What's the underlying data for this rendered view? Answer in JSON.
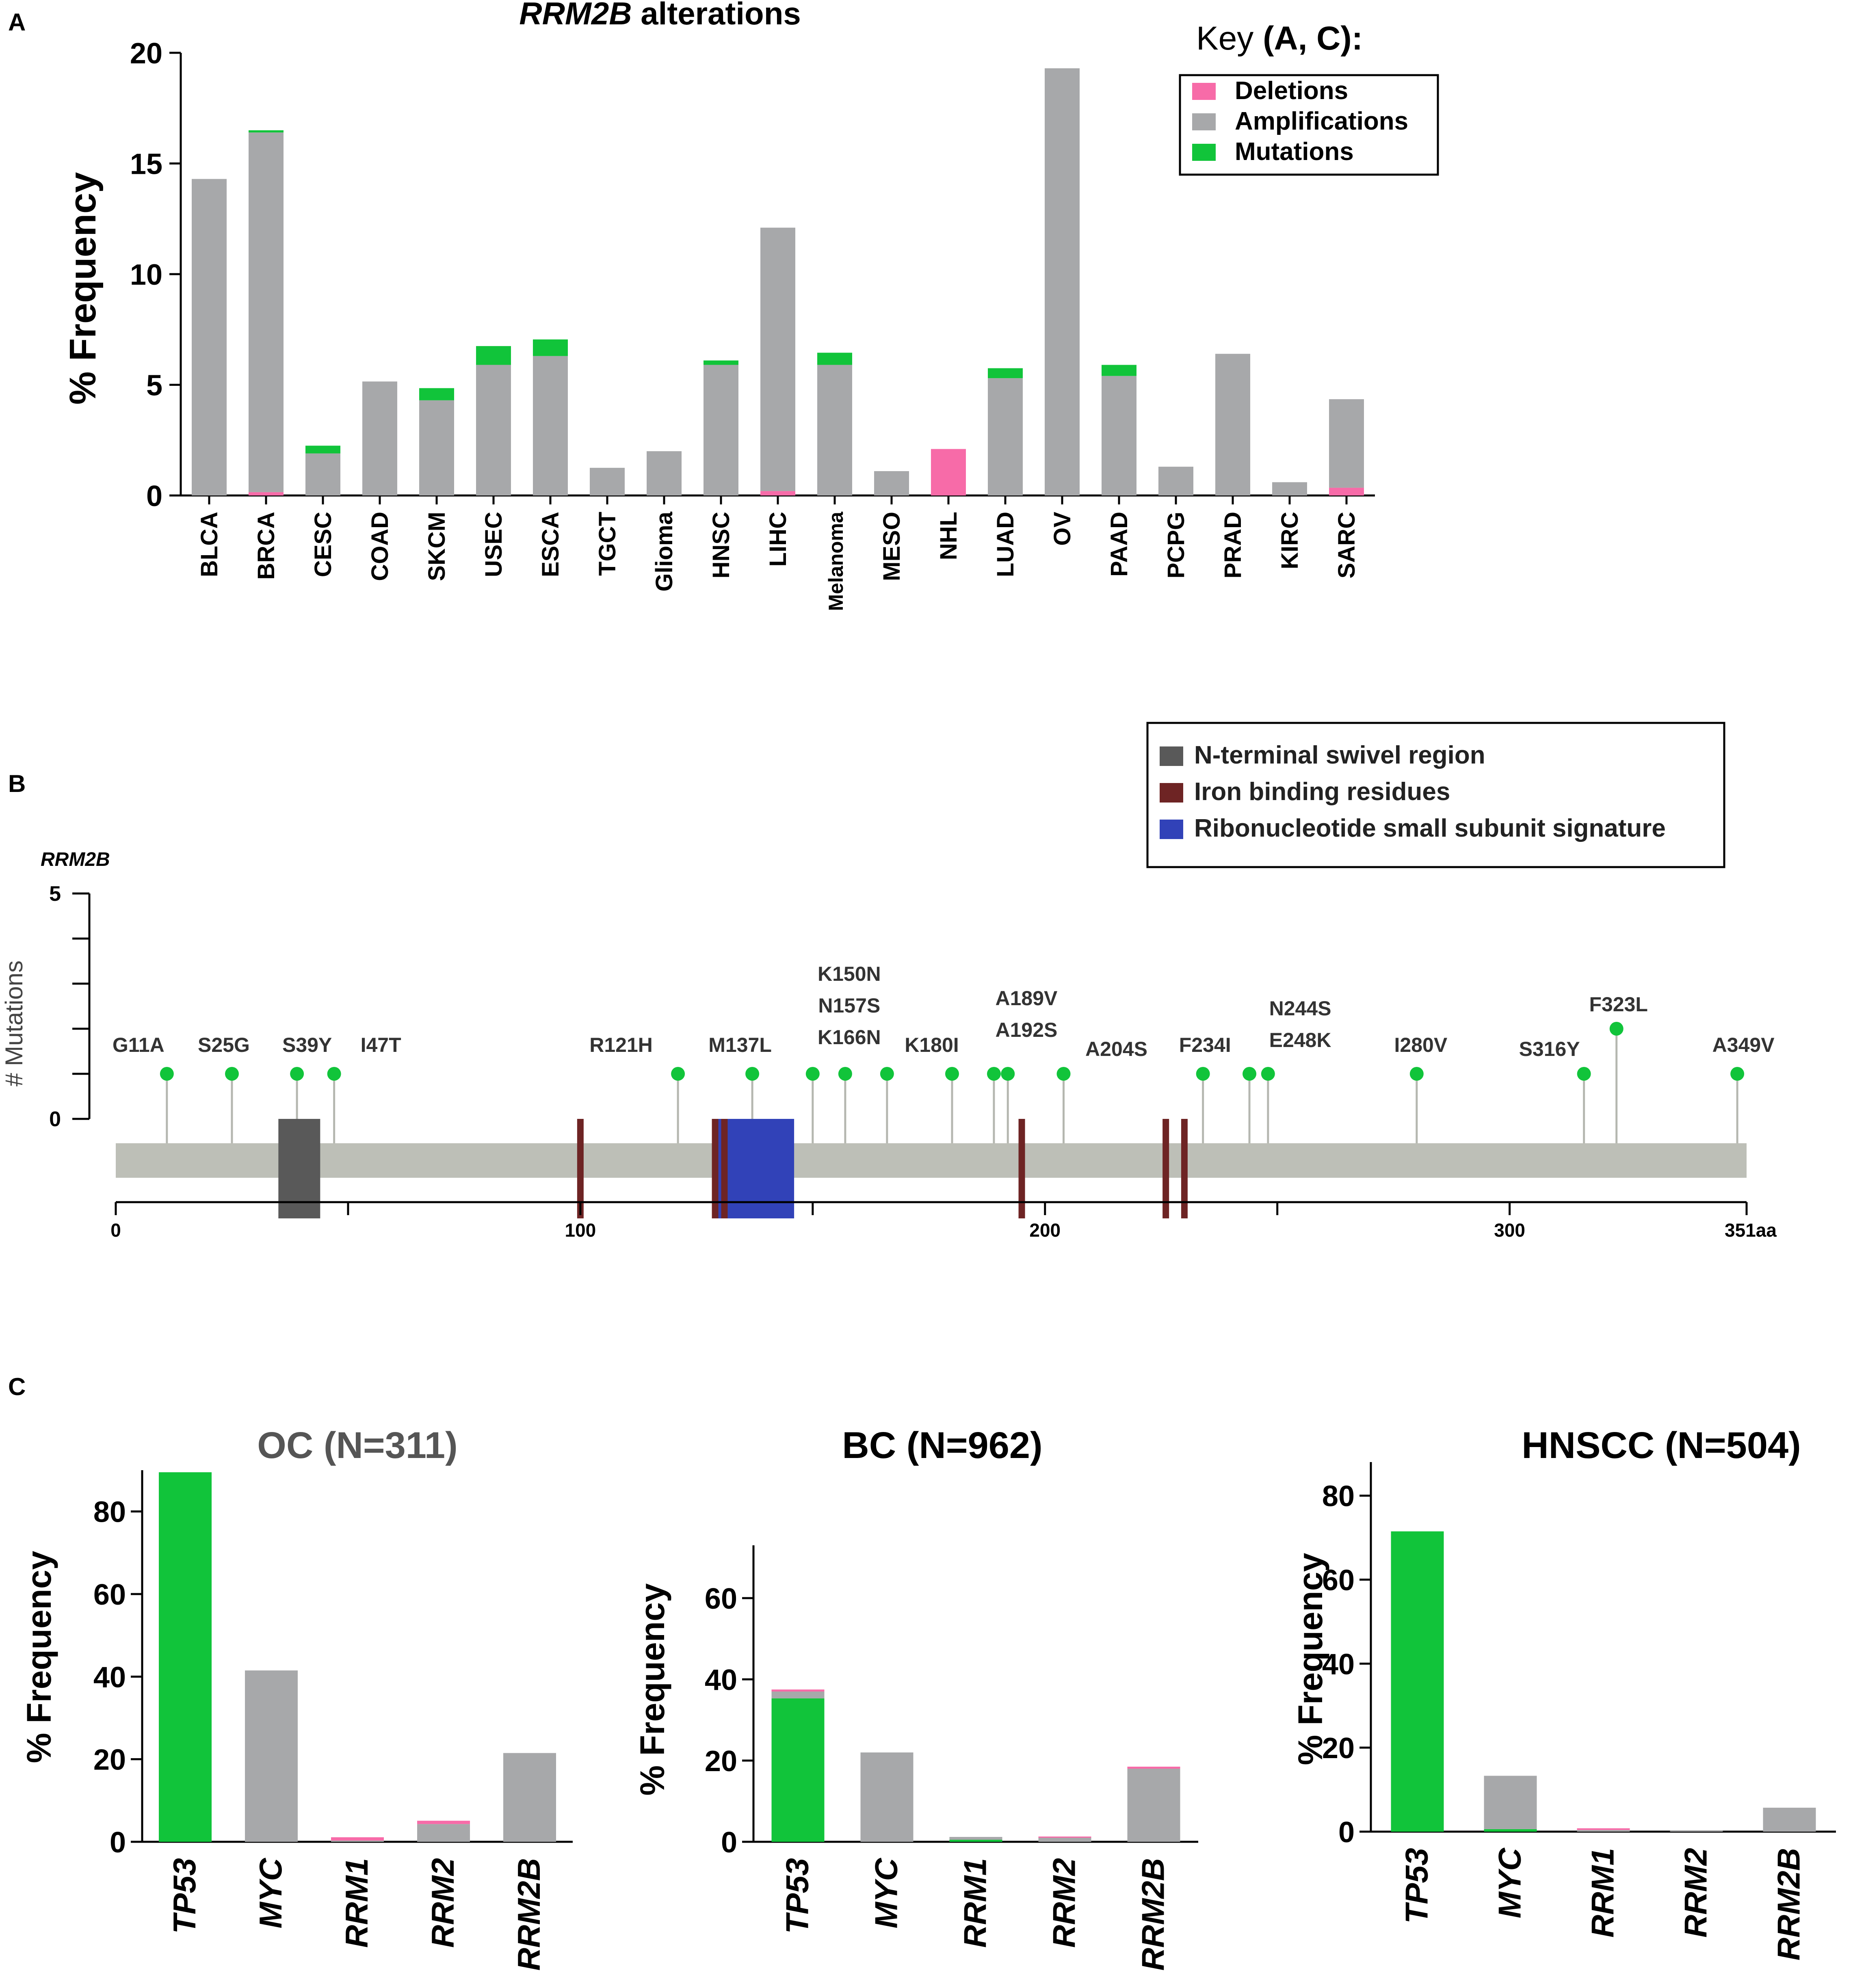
{
  "panels": {
    "a": {
      "letter": "A",
      "chart_data": {
        "type": "bar",
        "stacked": true,
        "title_italic": "RRM2B",
        "title_rest": " alterations",
        "ylabel": "% Frequency",
        "ylim": [
          0,
          20
        ],
        "yticks": [
          0,
          5,
          10,
          15,
          20
        ],
        "categories": [
          "BLCA",
          "BRCA",
          "CESC",
          "COAD",
          "SKCM",
          "USEC",
          "ESCA",
          "TGCT",
          "Glioma",
          "HNSC",
          "LIHC",
          "Melanoma",
          "MESO",
          "NHL",
          "LUAD",
          "OV",
          "PAAD",
          "PCPG",
          "PRAD",
          "KIRC",
          "SARC"
        ],
        "series": [
          {
            "name": "Deletions",
            "color": "#f76ba8",
            "values": [
              0,
              0.15,
              0,
              0,
              0,
              0,
              0,
              0,
              0,
              0,
              0.2,
              0,
              0,
              2.1,
              0,
              0,
              0,
              0,
              0,
              0,
              0.35
            ]
          },
          {
            "name": "Amplifications",
            "color": "#a7a8aa",
            "values": [
              14.3,
              16.25,
              1.9,
              5.15,
              4.3,
              5.9,
              6.3,
              1.25,
              2.0,
              5.9,
              11.9,
              5.9,
              1.1,
              0,
              5.3,
              19.3,
              5.4,
              1.3,
              6.4,
              0.6,
              4.0
            ]
          },
          {
            "name": "Mutations",
            "color": "#11c43a",
            "values": [
              0,
              0.1,
              0.35,
              0,
              0.55,
              0.85,
              0.75,
              0,
              0,
              0.2,
              0,
              0.55,
              0,
              0,
              0.45,
              0,
              0.5,
              0,
              0,
              0,
              0
            ]
          }
        ]
      },
      "key": {
        "title_plain": "Key ",
        "title_bold": "(A, C):",
        "items": [
          {
            "label": "Deletions",
            "color": "#f76ba8"
          },
          {
            "label": "Amplifications",
            "color": "#a7a8aa"
          },
          {
            "label": "Mutations",
            "color": "#11c43a"
          }
        ]
      }
    },
    "b": {
      "letter": "B",
      "chart_data": {
        "type": "lollipop",
        "gene": "RRM2B",
        "ylabel": "# Mutations",
        "ylim": [
          0,
          5
        ],
        "yticks": [
          0,
          5
        ],
        "protein_length": 351,
        "length_label": "351aa",
        "xticks": [
          0,
          100,
          200,
          300
        ],
        "mutations": [
          {
            "pos": 11,
            "count": 1,
            "labels": [
              "G11A"
            ]
          },
          {
            "pos": 25,
            "count": 1,
            "labels": [
              "S25G"
            ]
          },
          {
            "pos": 39,
            "count": 1,
            "labels": [
              "S39Y"
            ]
          },
          {
            "pos": 47,
            "count": 1,
            "labels": [
              "I47T"
            ]
          },
          {
            "pos": 121,
            "count": 1,
            "labels": [
              "R121H"
            ]
          },
          {
            "pos": 137,
            "count": 1,
            "labels": [
              "M137L"
            ]
          },
          {
            "pos": 150,
            "count": 1,
            "labels": [
              "K150N",
              "N157S",
              "K166N"
            ]
          },
          {
            "pos": 157,
            "count": 1,
            "labels": []
          },
          {
            "pos": 166,
            "count": 1,
            "labels": []
          },
          {
            "pos": 180,
            "count": 1,
            "labels": [
              "K180I"
            ]
          },
          {
            "pos": 189,
            "count": 1,
            "labels": [
              "A189V",
              "A192S"
            ]
          },
          {
            "pos": 192,
            "count": 1,
            "labels": []
          },
          {
            "pos": 204,
            "count": 1,
            "labels": [
              "A204S"
            ]
          },
          {
            "pos": 234,
            "count": 1,
            "labels": [
              "F234I"
            ]
          },
          {
            "pos": 244,
            "count": 1,
            "labels": [
              "N244S",
              "E248K"
            ]
          },
          {
            "pos": 248,
            "count": 1,
            "labels": []
          },
          {
            "pos": 280,
            "count": 1,
            "labels": [
              "I280V"
            ]
          },
          {
            "pos": 316,
            "count": 1,
            "labels": [
              "S316Y"
            ]
          },
          {
            "pos": 323,
            "count": 2,
            "labels": [
              "F323L"
            ]
          },
          {
            "pos": 349,
            "count": 1,
            "labels": [
              "A349V"
            ]
          }
        ],
        "domains": [
          {
            "name": "N-terminal swivel region",
            "start": 35,
            "end": 44,
            "color": "#595959"
          },
          {
            "name": "Ribonucleotide small subunit signature",
            "start": 129,
            "end": 146,
            "color": "#3142b8"
          }
        ],
        "iron_sites": [
          100,
          129,
          131,
          195,
          226,
          230
        ],
        "iron_color": "#6e2424"
      },
      "legend": [
        {
          "label": "N-terminal swivel region",
          "color": "#595959"
        },
        {
          "label": "Iron binding residues",
          "color": "#6e2424"
        },
        {
          "label": "Ribonucleotide small subunit signature",
          "color": "#3142b8"
        }
      ]
    },
    "c": {
      "letter": "C",
      "chart_data": [
        {
          "type": "bar",
          "stacked": true,
          "title": "OC (N=311)",
          "title_color": "#555555",
          "ylabel": "% Frequency",
          "ylim": [
            0,
            90
          ],
          "yticks": [
            0,
            20,
            40,
            60,
            80
          ],
          "categories": [
            "TP53",
            "MYC",
            "RRM1",
            "RRM2",
            "RRM2B"
          ],
          "series": [
            {
              "name": "Mutations",
              "color": "#11c43a",
              "values": [
                89.5,
                0,
                0,
                0,
                0
              ]
            },
            {
              "name": "Amplifications",
              "color": "#a7a8aa",
              "values": [
                0,
                41.5,
                0.3,
                4.3,
                21.5
              ]
            },
            {
              "name": "Deletions",
              "color": "#f76ba8",
              "values": [
                0,
                0,
                0.8,
                0.8,
                0
              ]
            }
          ]
        },
        {
          "type": "bar",
          "stacked": true,
          "title": "BC (N=962)",
          "title_color": "#000000",
          "ylabel": "% Frequency",
          "ylim": [
            0,
            73
          ],
          "yticks": [
            0,
            20,
            40,
            60
          ],
          "categories": [
            "TP53",
            "MYC",
            "RRM1",
            "RRM2",
            "RRM2B"
          ],
          "series": [
            {
              "name": "Mutations",
              "color": "#11c43a",
              "values": [
                35.3,
                0,
                0.5,
                0,
                0
              ]
            },
            {
              "name": "Amplifications",
              "color": "#a7a8aa",
              "values": [
                1.7,
                22.0,
                0.7,
                1.0,
                18.0
              ]
            },
            {
              "name": "Deletions",
              "color": "#f76ba8",
              "values": [
                0.5,
                0,
                0,
                0.3,
                0.5
              ]
            }
          ]
        },
        {
          "type": "bar",
          "stacked": true,
          "title": "HNSCC (N=504)",
          "title_color": "#000000",
          "ylabel": "% Frequency",
          "ylim": [
            0,
            88
          ],
          "yticks": [
            0,
            20,
            40,
            60,
            80
          ],
          "categories": [
            "TP53",
            "MYC",
            "RRM1",
            "RRM2",
            "RRM2B"
          ],
          "series": [
            {
              "name": "Mutations",
              "color": "#11c43a",
              "values": [
                71.5,
                0.6,
                0,
                0,
                0
              ]
            },
            {
              "name": "Amplifications",
              "color": "#a7a8aa",
              "values": [
                0,
                12.7,
                0.4,
                0.2,
                5.7
              ]
            },
            {
              "name": "Deletions",
              "color": "#f76ba8",
              "values": [
                0,
                0,
                0.4,
                0,
                0
              ]
            }
          ]
        }
      ]
    }
  }
}
